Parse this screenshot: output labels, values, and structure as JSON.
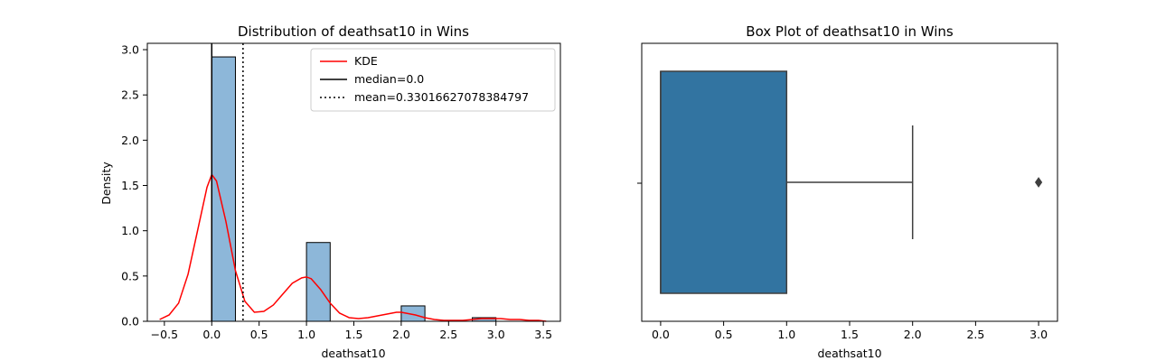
{
  "chart_data": [
    {
      "type": "bar",
      "title": "Distribution of deathsat10 in Wins",
      "xlabel": "deathsat10",
      "ylabel": "Density",
      "xlim": [
        -0.68,
        3.68
      ],
      "ylim": [
        0,
        3.07
      ],
      "xticks": [
        -0.5,
        0.0,
        0.5,
        1.0,
        1.5,
        2.0,
        2.5,
        3.0,
        3.5
      ],
      "xtick_labels": [
        "−0.5",
        "0.0",
        "0.5",
        "1.0",
        "1.5",
        "2.0",
        "2.5",
        "3.0",
        "3.5"
      ],
      "yticks": [
        0.0,
        0.5,
        1.0,
        1.5,
        2.0,
        2.5,
        3.0
      ],
      "ytick_labels": [
        "0.0",
        "0.5",
        "1.0",
        "1.5",
        "2.0",
        "2.5",
        "3.0"
      ],
      "bins": [
        {
          "x0": 0.0,
          "x1": 0.25,
          "density": 2.92
        },
        {
          "x0": 1.0,
          "x1": 1.25,
          "density": 0.87
        },
        {
          "x0": 2.0,
          "x1": 2.25,
          "density": 0.17
        },
        {
          "x0": 2.75,
          "x1": 3.0,
          "density": 0.04
        }
      ],
      "kde": {
        "name": "KDE",
        "color": "#ff0000",
        "x": [
          -0.55,
          -0.45,
          -0.35,
          -0.25,
          -0.15,
          -0.05,
          0.0,
          0.05,
          0.15,
          0.25,
          0.35,
          0.45,
          0.55,
          0.65,
          0.75,
          0.85,
          0.95,
          1.0,
          1.05,
          1.15,
          1.25,
          1.35,
          1.45,
          1.55,
          1.65,
          1.75,
          1.85,
          1.95,
          2.0,
          2.05,
          2.15,
          2.25,
          2.35,
          2.45,
          2.55,
          2.65,
          2.75,
          2.85,
          2.95,
          3.0,
          3.05,
          3.15,
          3.25,
          3.35,
          3.45,
          3.53
        ],
        "y": [
          0.02,
          0.07,
          0.2,
          0.52,
          1.0,
          1.48,
          1.62,
          1.55,
          1.1,
          0.56,
          0.22,
          0.1,
          0.11,
          0.18,
          0.3,
          0.42,
          0.48,
          0.49,
          0.47,
          0.35,
          0.2,
          0.09,
          0.04,
          0.03,
          0.04,
          0.06,
          0.08,
          0.1,
          0.1,
          0.09,
          0.07,
          0.04,
          0.02,
          0.01,
          0.01,
          0.01,
          0.02,
          0.03,
          0.03,
          0.03,
          0.03,
          0.02,
          0.02,
          0.01,
          0.01,
          0.0
        ]
      },
      "median": {
        "label": "median=0.0",
        "value": 0.0
      },
      "mean": {
        "label": "mean=0.33016627078384797",
        "value": 0.33016627078384797
      },
      "bar_color": "#8db7d9",
      "legend_placement": "top-right",
      "grid": false
    },
    {
      "type": "box",
      "title": "Box Plot of deathsat10 in Wins",
      "xlabel": "deathsat10",
      "xlim": [
        -0.15,
        3.15
      ],
      "xticks": [
        0.0,
        0.5,
        1.0,
        1.5,
        2.0,
        2.5,
        3.0
      ],
      "xtick_labels": [
        "0.0",
        "0.5",
        "1.0",
        "1.5",
        "2.0",
        "2.5",
        "3.0"
      ],
      "q1": 0.0,
      "median": 0.0,
      "q3": 1.0,
      "whisker_low": 0.0,
      "whisker_high": 2.0,
      "outliers": [
        3.0
      ],
      "box_color": "#3274a1",
      "grid": false
    }
  ]
}
